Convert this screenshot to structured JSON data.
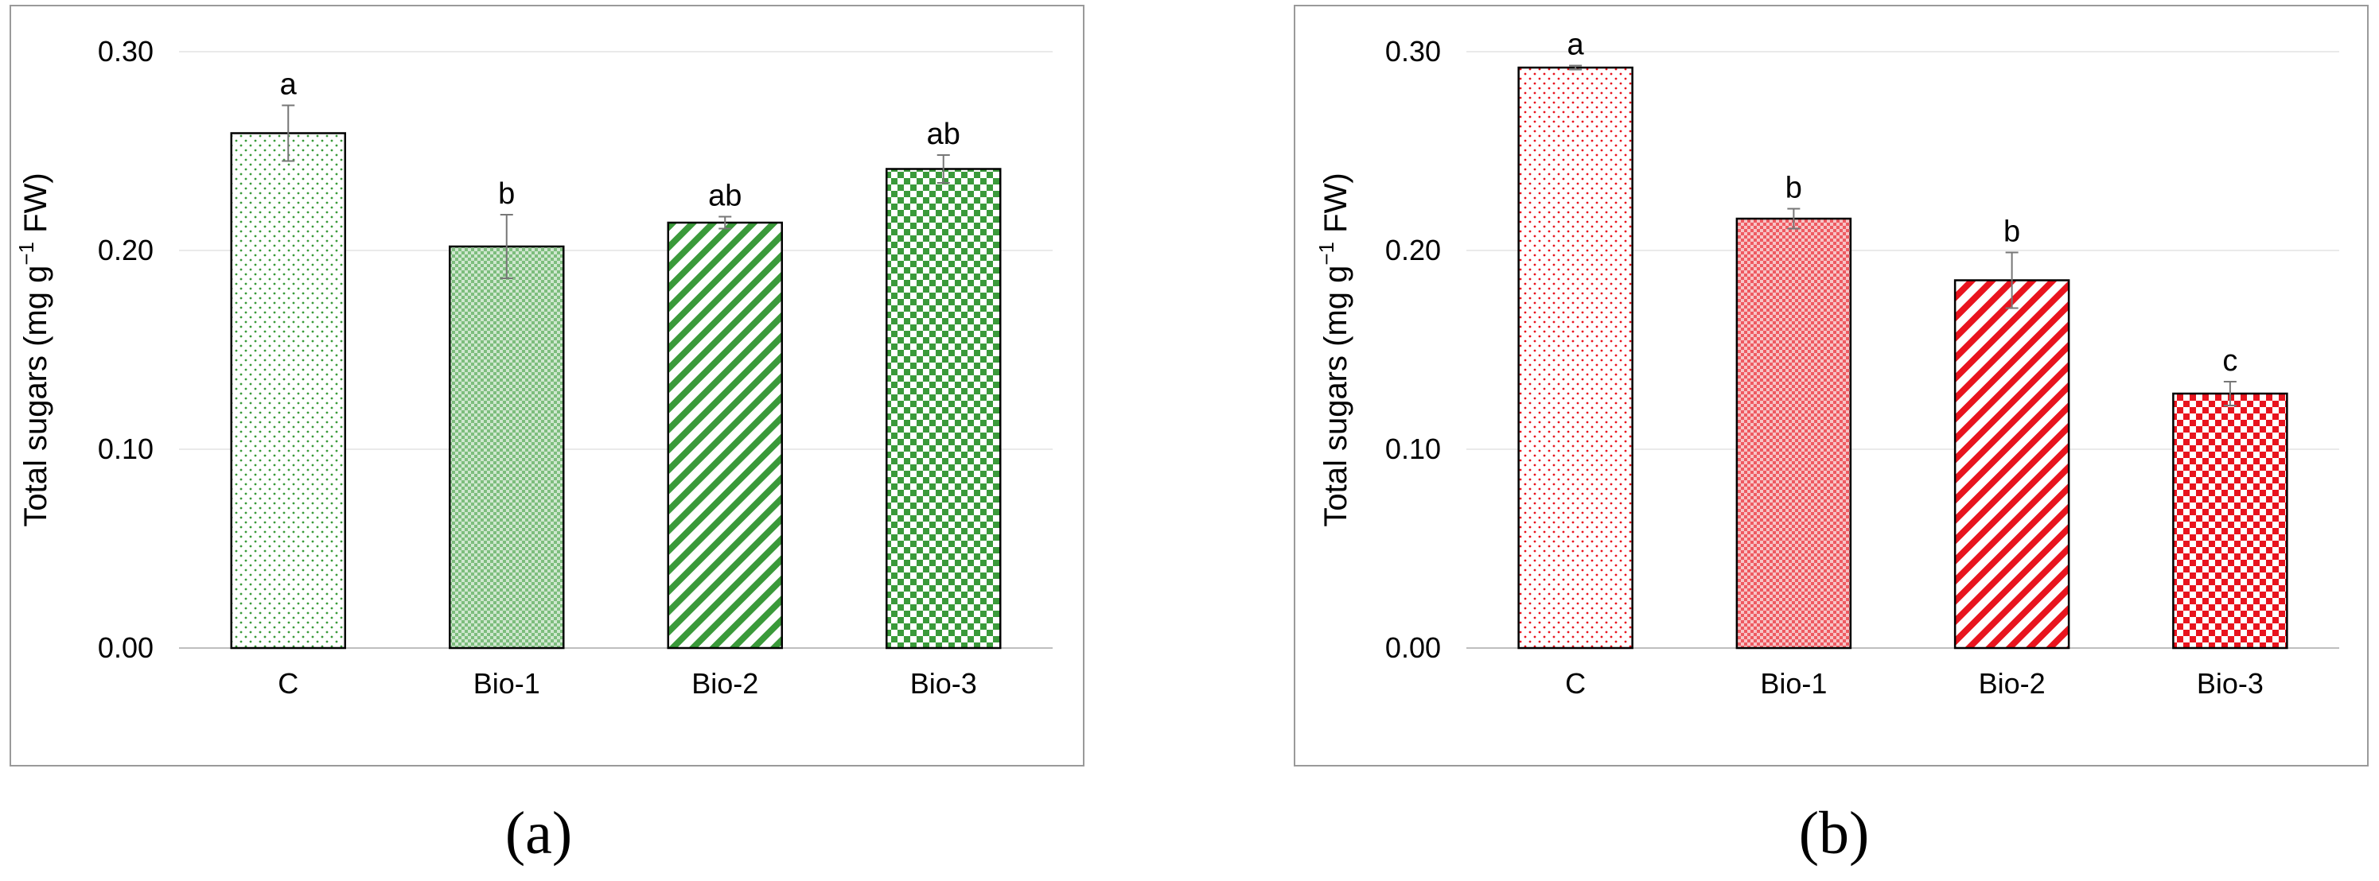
{
  "figure": {
    "panels": [
      "(a)",
      "(b)"
    ]
  },
  "chart_data": [
    {
      "type": "bar",
      "panel_label": "a",
      "title": "",
      "xlabel": "",
      "ylabel": "Total sugars (mg g",
      "ylabel_sup": "−1",
      "ylabel_end": " FW)",
      "categories": [
        "C",
        "Bio-1",
        "Bio-2",
        "Bio-3"
      ],
      "values": [
        0.259,
        0.202,
        0.214,
        0.241
      ],
      "errors": [
        0.014,
        0.016,
        0.003,
        0.007
      ],
      "significance": [
        "a",
        "b",
        "ab",
        "ab"
      ],
      "ylim": [
        0,
        0.3
      ],
      "yticks": [
        "0.00",
        "0.10",
        "0.20",
        "0.30"
      ],
      "ytick_values": [
        0,
        0.1,
        0.2,
        0.3
      ],
      "grid": true,
      "color": "#3a9a3a",
      "patterns": [
        "fine-dots",
        "fine-check",
        "diagonal-stripes",
        "coarse-check"
      ]
    },
    {
      "type": "bar",
      "panel_label": "b",
      "title": "",
      "xlabel": "",
      "ylabel": "Total sugars (mg g",
      "ylabel_sup": "−1",
      "ylabel_end": " FW)",
      "categories": [
        "C",
        "Bio-1",
        "Bio-2",
        "Bio-3"
      ],
      "values": [
        0.292,
        0.216,
        0.185,
        0.128
      ],
      "errors": [
        0.001,
        0.005,
        0.014,
        0.006
      ],
      "significance": [
        "a",
        "b",
        "b",
        "c"
      ],
      "ylim": [
        0,
        0.3
      ],
      "yticks": [
        "0.00",
        "0.10",
        "0.20",
        "0.30"
      ],
      "ytick_values": [
        0,
        0.1,
        0.2,
        0.3
      ],
      "grid": true,
      "color": "#e8141e",
      "patterns": [
        "fine-dots",
        "fine-check",
        "diagonal-stripes",
        "coarse-check"
      ]
    }
  ]
}
